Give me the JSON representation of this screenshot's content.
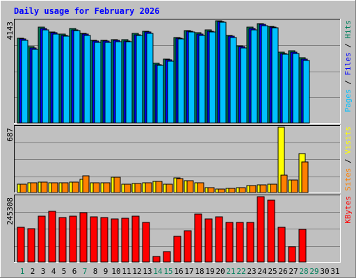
{
  "title": "Daily usage for February 2026",
  "colors": {
    "background": "#C0C0C0",
    "hits": "#00805C",
    "files": "#0000FF",
    "pages": "#00C0FF",
    "visits": "#FFFF00",
    "sites": "#FF8000",
    "kbytes": "#FF0000",
    "title": "#0000FF",
    "weekend_day": "#00805C",
    "weekday": "#000000"
  },
  "chart_data": [
    {
      "type": "bar",
      "panel": "pages-files-hits",
      "ymax_label": "4143",
      "ylim": [
        0,
        4143
      ],
      "legend": [
        {
          "text": "Pages",
          "color": "#00C0FF"
        },
        {
          "text": "Files",
          "color": "#0000FF"
        },
        {
          "text": "Hits",
          "color": "#00805C"
        }
      ],
      "separators": [
        " / ",
        " / "
      ],
      "categories": [
        "1",
        "2",
        "3",
        "4",
        "5",
        "6",
        "7",
        "8",
        "9",
        "10",
        "11",
        "12",
        "13",
        "14",
        "15",
        "16",
        "17",
        "18",
        "19",
        "20",
        "21",
        "22",
        "23",
        "24",
        "25",
        "26",
        "27",
        "28",
        "29",
        "30",
        "31"
      ],
      "series": [
        {
          "name": "Hits",
          "color": "#00805C",
          "values": [
            3450,
            3100,
            3880,
            3700,
            3600,
            3830,
            3640,
            3360,
            3360,
            3380,
            3370,
            3630,
            3720,
            2420,
            2600,
            3480,
            3760,
            3650,
            3770,
            4143,
            3550,
            3130,
            3880,
            4030,
            3930,
            2870,
            2920,
            2640,
            null,
            null,
            null
          ]
        },
        {
          "name": "Files",
          "color": "#0000FF",
          "values": [
            3400,
            3050,
            3830,
            3660,
            3560,
            3790,
            3600,
            3320,
            3320,
            3340,
            3330,
            3590,
            3680,
            2380,
            2560,
            3440,
            3720,
            3610,
            3730,
            4110,
            3510,
            3090,
            3840,
            3990,
            3890,
            2830,
            2880,
            2600,
            null,
            null,
            null
          ]
        },
        {
          "name": "Pages",
          "color": "#00C0FF",
          "values": [
            3350,
            3000,
            3780,
            3620,
            3520,
            3750,
            3560,
            3280,
            3280,
            3300,
            3290,
            3550,
            3640,
            2330,
            2520,
            3400,
            3680,
            3560,
            3690,
            4080,
            3470,
            3050,
            3790,
            3950,
            3850,
            2790,
            2830,
            2550,
            null,
            null,
            null
          ]
        }
      ]
    },
    {
      "type": "bar",
      "panel": "visits-sites",
      "ymax_label": "687",
      "ylim": [
        0,
        687
      ],
      "legend": [
        {
          "text": "Sites",
          "color": "#FF8000"
        },
        {
          "text": "Visits",
          "color": "#FFFF00"
        }
      ],
      "separators": [
        " / "
      ],
      "categories": [
        "1",
        "2",
        "3",
        "4",
        "5",
        "6",
        "7",
        "8",
        "9",
        "10",
        "11",
        "12",
        "13",
        "14",
        "15",
        "16",
        "17",
        "18",
        "19",
        "20",
        "21",
        "22",
        "23",
        "24",
        "25",
        "26",
        "27",
        "28",
        "29",
        "30",
        "31"
      ],
      "series": [
        {
          "name": "Visits",
          "color": "#FFFF00",
          "values": [
            85,
            105,
            110,
            105,
            100,
            110,
            140,
            105,
            100,
            160,
            85,
            95,
            105,
            120,
            90,
            150,
            125,
            100,
            50,
            40,
            45,
            50,
            70,
            80,
            85,
            687,
            130,
            410,
            null,
            null,
            null
          ]
        },
        {
          "name": "Sites",
          "color": "#FF8000",
          "values": [
            85,
            105,
            110,
            105,
            100,
            110,
            175,
            105,
            100,
            160,
            85,
            95,
            105,
            120,
            90,
            145,
            125,
            100,
            50,
            40,
            45,
            50,
            70,
            80,
            85,
            185,
            130,
            320,
            null,
            null,
            null
          ]
        }
      ]
    },
    {
      "type": "bar",
      "panel": "kbytes",
      "ymax_label": "245308",
      "ylim": [
        0,
        245308
      ],
      "legend": [
        {
          "text": "KBytes",
          "color": "#FF0000"
        }
      ],
      "separators": [],
      "categories": [
        "1",
        "2",
        "3",
        "4",
        "5",
        "6",
        "7",
        "8",
        "9",
        "10",
        "11",
        "12",
        "13",
        "14",
        "15",
        "16",
        "17",
        "18",
        "19",
        "20",
        "21",
        "22",
        "23",
        "24",
        "25",
        "26",
        "27",
        "28",
        "29",
        "30",
        "31"
      ],
      "series": [
        {
          "name": "KBytes",
          "color": "#FF0000",
          "values": [
            130000,
            125000,
            172000,
            191000,
            166000,
            172000,
            186000,
            170000,
            168000,
            161000,
            165000,
            172000,
            148000,
            20000,
            40000,
            97000,
            117000,
            179000,
            163000,
            170000,
            148000,
            150000,
            150000,
            245308,
            233000,
            130000,
            58000,
            122000,
            null,
            null,
            null
          ]
        }
      ]
    }
  ],
  "x_axis": {
    "labels": [
      "1",
      "2",
      "3",
      "4",
      "5",
      "6",
      "7",
      "8",
      "9",
      "10",
      "11",
      "12",
      "13",
      "14",
      "15",
      "16",
      "17",
      "18",
      "19",
      "20",
      "21",
      "22",
      "23",
      "24",
      "25",
      "26",
      "27",
      "28",
      "29",
      "30",
      "31"
    ],
    "weekend": [
      1,
      7,
      14,
      15,
      21,
      22,
      28,
      29
    ]
  }
}
